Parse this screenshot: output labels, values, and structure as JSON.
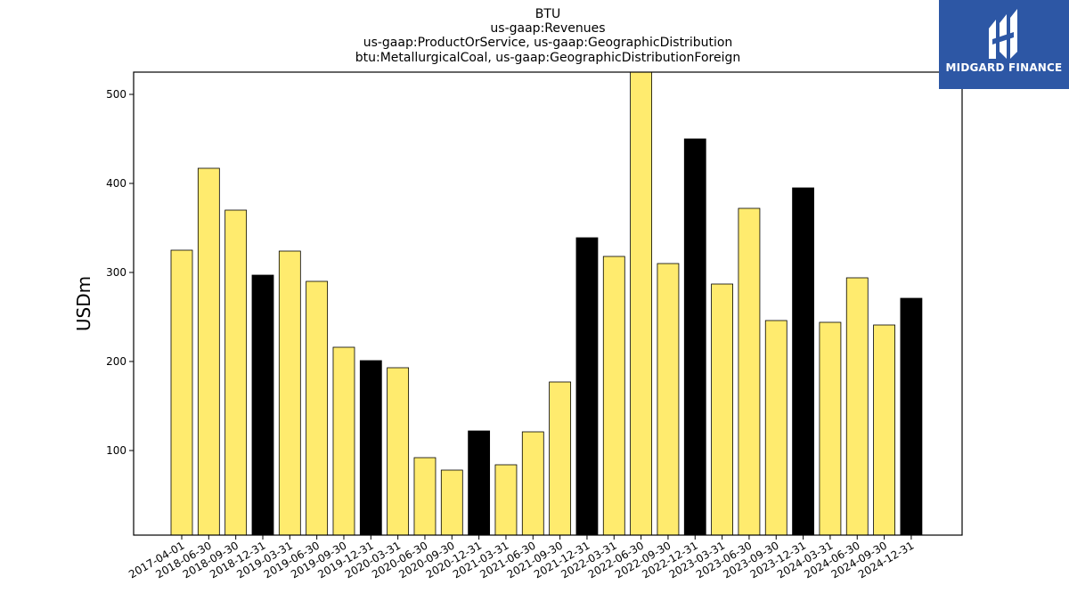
{
  "logo": {
    "text": "MIDGARD FINANCE"
  },
  "colors": {
    "regular": "#ffeb6e",
    "year_end": "#000000",
    "logo_bg": "#2d57a5"
  },
  "chart_data": {
    "type": "bar",
    "title": [
      "BTU",
      "us-gaap:Revenues",
      "us-gaap:ProductOrService, us-gaap:GeographicDistribution",
      "btu:MetallurgicalCoal, us-gaap:GeographicDistributionForeign"
    ],
    "xlabel": "",
    "ylabel": "USDm",
    "ylim": [
      5,
      525
    ],
    "yticks": [
      100,
      200,
      300,
      400,
      500
    ],
    "grid": false,
    "categories": [
      "2017-04-01",
      "2018-06-30",
      "2018-09-30",
      "2018-12-31",
      "2019-03-31",
      "2019-06-30",
      "2019-09-30",
      "2019-12-31",
      "2020-03-31",
      "2020-06-30",
      "2020-09-30",
      "2020-12-31",
      "2021-03-31",
      "2021-06-30",
      "2021-09-30",
      "2021-12-31",
      "2022-03-31",
      "2022-06-30",
      "2022-09-30",
      "2022-12-31",
      "2023-03-31",
      "2023-06-30",
      "2023-09-30",
      "2023-12-31",
      "2024-03-31",
      "2024-06-30",
      "2024-09-30",
      "2024-12-31"
    ],
    "values": [
      325,
      417,
      370,
      297,
      324,
      290,
      216,
      201,
      193,
      92,
      78,
      122,
      84,
      121,
      177,
      339,
      318,
      530,
      310,
      450,
      287,
      372,
      246,
      395,
      244,
      294,
      241,
      271
    ],
    "highlight": [
      false,
      false,
      false,
      true,
      false,
      false,
      false,
      true,
      false,
      false,
      false,
      true,
      false,
      false,
      false,
      true,
      false,
      false,
      false,
      true,
      false,
      false,
      false,
      true,
      false,
      false,
      false,
      true
    ]
  }
}
